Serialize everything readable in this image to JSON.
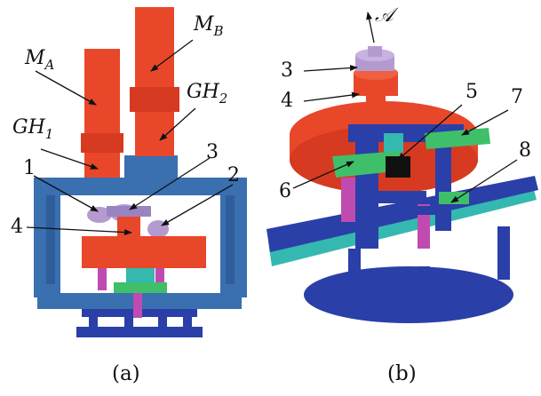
{
  "panel_a": {
    "caption": "(a)",
    "labels": {
      "ma": "M",
      "ma_sub": "A",
      "mb": "M",
      "mb_sub": "B",
      "gh1": "GH",
      "gh1_sub": "1",
      "gh2": "GH",
      "gh2_sub": "2",
      "n1": "1",
      "n2": "2",
      "n3": "3",
      "n4": "4"
    }
  },
  "panel_b": {
    "caption": "(b)",
    "labels": {
      "axis": "𝒜",
      "n3": "3",
      "n4": "4",
      "n5": "5",
      "n6": "6",
      "n7": "7",
      "n8": "8"
    }
  },
  "colors": {
    "motor_red": "#e8472a",
    "frame_blue": "#3a6fb0",
    "dark_blue": "#2a3fa8",
    "gear_lilac": "#b59ad0",
    "green": "#3fbf6a",
    "cyan": "#35b8b0",
    "magenta": "#c04bb0"
  }
}
